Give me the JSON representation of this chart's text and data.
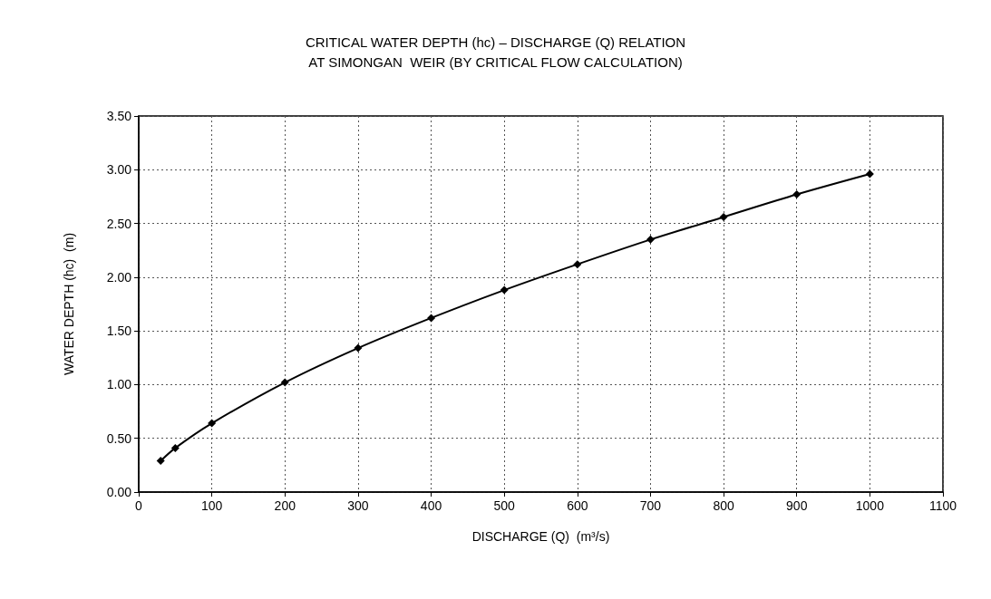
{
  "chart_data": {
    "type": "line",
    "title": "CRITICAL WATER DEPTH (hc) – DISCHARGE (Q) RELATION\nAT SIMONGAN  WEIR (BY CRITICAL FLOW CALCULATION)",
    "xlabel": "DISCHARGE (Q)  (m³/s)",
    "ylabel": "WATER DEPTH (hc)  (m)",
    "x": [
      30,
      50,
      100,
      200,
      300,
      400,
      500,
      600,
      700,
      800,
      900,
      1000
    ],
    "series": [
      {
        "color": "#000000",
        "values": [
          0.29,
          0.41,
          0.64,
          1.02,
          1.34,
          1.62,
          1.88,
          2.12,
          2.35,
          2.56,
          2.77,
          2.96
        ]
      }
    ],
    "xlim": [
      0,
      1100
    ],
    "xticks": [
      0,
      100,
      200,
      300,
      400,
      500,
      600,
      700,
      800,
      900,
      1000,
      1100
    ],
    "ylim": [
      0,
      3.5
    ],
    "yticks": [
      {
        "value": 0,
        "label": "0.00"
      },
      {
        "value": 0.5,
        "label": "0.50"
      },
      {
        "value": 1,
        "label": "1.00"
      },
      {
        "value": 1.5,
        "label": "1.50"
      },
      {
        "value": 2,
        "label": "2.00"
      },
      {
        "value": 2.5,
        "label": "2.50"
      },
      {
        "value": 3,
        "label": "3.00"
      },
      {
        "value": 3.5,
        "label": "3.50"
      }
    ],
    "grid": true,
    "marker": "diamond",
    "line_style": "solid"
  }
}
